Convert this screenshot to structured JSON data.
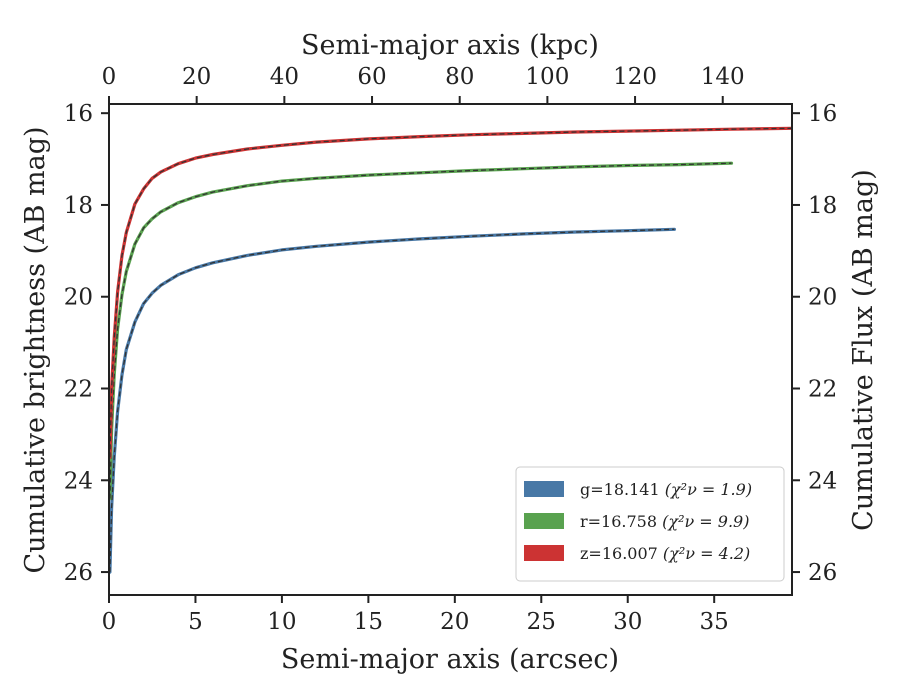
{
  "chart_data": {
    "type": "line",
    "xlabel": "Semi-major axis (arcsec)",
    "ylabel": "Cumulative brightness (AB mag)",
    "x2label": "Semi-major axis (kpc)",
    "y2label": "Cumulative Flux (AB mag)",
    "xlim": [
      0,
      39.5
    ],
    "ylim": [
      26.5,
      15.8
    ],
    "y_inverted": true,
    "x2lim": [
      0,
      155.8
    ],
    "x_ticks": [
      0,
      5,
      10,
      15,
      20,
      25,
      30,
      35
    ],
    "y_ticks": [
      16,
      18,
      20,
      22,
      24,
      26
    ],
    "x2_ticks": [
      0,
      20,
      40,
      60,
      80,
      100,
      120,
      140
    ],
    "grid": false,
    "legend_position": "lower-right",
    "series": [
      {
        "name": "g=18.141",
        "chi_label": "(χ²ν = 1.9)",
        "color": "#4878a6",
        "x": [
          0.05,
          0.15,
          0.3,
          0.5,
          0.75,
          1.0,
          1.5,
          2.0,
          2.5,
          3.0,
          4.0,
          5.0,
          6.0,
          8.0,
          10.0,
          12.0,
          15.0,
          18.0,
          21.0,
          24.0,
          27.0,
          30.0,
          32.7
        ],
        "y": [
          26.0,
          24.6,
          23.5,
          22.5,
          21.7,
          21.15,
          20.55,
          20.15,
          19.92,
          19.75,
          19.52,
          19.37,
          19.26,
          19.1,
          18.98,
          18.9,
          18.81,
          18.74,
          18.68,
          18.63,
          18.59,
          18.56,
          18.53
        ]
      },
      {
        "name": "r=16.758",
        "chi_label": "(χ²ν = 9.9)",
        "color": "#59a24f",
        "x": [
          0.05,
          0.15,
          0.3,
          0.5,
          0.75,
          1.0,
          1.5,
          2.0,
          2.5,
          3.0,
          4.0,
          5.0,
          6.0,
          8.0,
          10.0,
          12.0,
          15.0,
          18.0,
          21.0,
          24.0,
          27.0,
          30.0,
          33.0,
          36.0
        ],
        "y": [
          24.4,
          22.9,
          21.7,
          20.7,
          19.95,
          19.45,
          18.85,
          18.5,
          18.3,
          18.15,
          17.95,
          17.82,
          17.72,
          17.58,
          17.48,
          17.42,
          17.35,
          17.3,
          17.25,
          17.21,
          17.17,
          17.14,
          17.12,
          17.09
        ]
      },
      {
        "name": "z=16.007",
        "chi_label": "(χ²ν = 4.2)",
        "color": "#cc3333",
        "x": [
          0.05,
          0.15,
          0.3,
          0.5,
          0.75,
          1.0,
          1.5,
          2.0,
          2.5,
          3.0,
          4.0,
          5.0,
          6.0,
          8.0,
          10.0,
          12.0,
          15.0,
          18.0,
          21.0,
          24.0,
          27.0,
          30.0,
          33.0,
          36.0,
          39.5
        ],
        "y": [
          23.5,
          22.0,
          20.9,
          19.9,
          19.1,
          18.6,
          17.98,
          17.65,
          17.42,
          17.28,
          17.1,
          16.98,
          16.9,
          16.78,
          16.7,
          16.63,
          16.56,
          16.51,
          16.47,
          16.44,
          16.41,
          16.39,
          16.37,
          16.35,
          16.33
        ]
      }
    ]
  }
}
